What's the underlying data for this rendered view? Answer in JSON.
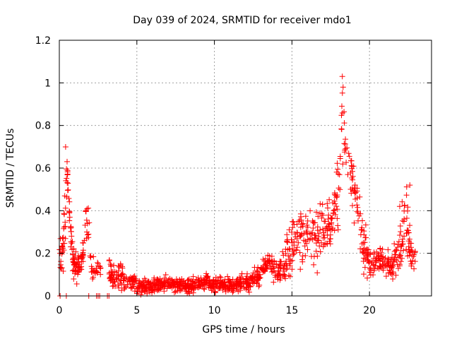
{
  "chart_data": {
    "type": "scatter",
    "title": "Day 039 of 2024, SRMTID for receiver mdo1",
    "xlabel": "GPS time / hours",
    "ylabel": "SRMTID / TECUs",
    "xlim": [
      0,
      24
    ],
    "ylim": [
      0,
      1.2
    ],
    "xticks": [
      0,
      5,
      10,
      15,
      20
    ],
    "xtick_labels": [
      "0",
      "5",
      "10",
      "15",
      "20"
    ],
    "yticks": [
      0,
      0.2,
      0.4,
      0.6,
      0.8,
      1.0,
      1.2
    ],
    "ytick_labels": [
      "0",
      "0.2",
      "0.4",
      "0.6",
      "0.8",
      "1",
      "1.2"
    ],
    "grid": true,
    "marker": "+",
    "series": [
      {
        "name": "SRMTID",
        "color": "#ff0000",
        "profile": [
          [
            0.0,
            0.15,
            0.08
          ],
          [
            0.2,
            0.2,
            0.08
          ],
          [
            0.4,
            0.4,
            0.2
          ],
          [
            0.5,
            0.58,
            0.06
          ],
          [
            0.7,
            0.34,
            0.06
          ],
          [
            0.9,
            0.15,
            0.06
          ],
          [
            1.2,
            0.12,
            0.05
          ],
          [
            1.5,
            0.18,
            0.05
          ],
          [
            1.7,
            0.38,
            0.08
          ],
          [
            1.9,
            0.28,
            0.1
          ],
          [
            2.1,
            0.14,
            0.05
          ],
          [
            2.3,
            0.13,
            0.04
          ],
          [
            3.2,
            0.12,
            0.05
          ],
          [
            3.5,
            0.09,
            0.04
          ],
          [
            4.0,
            0.08,
            0.05
          ],
          [
            4.5,
            0.07,
            0.05
          ],
          [
            5.0,
            0.04,
            0.03
          ],
          [
            6.0,
            0.05,
            0.03
          ],
          [
            7.0,
            0.06,
            0.03
          ],
          [
            8.0,
            0.04,
            0.03
          ],
          [
            9.0,
            0.06,
            0.03
          ],
          [
            9.5,
            0.07,
            0.03
          ],
          [
            10.0,
            0.05,
            0.03
          ],
          [
            11.0,
            0.05,
            0.03
          ],
          [
            12.0,
            0.06,
            0.04
          ],
          [
            12.5,
            0.08,
            0.04
          ],
          [
            13.0,
            0.1,
            0.04
          ],
          [
            13.5,
            0.17,
            0.04
          ],
          [
            14.0,
            0.1,
            0.05
          ],
          [
            14.5,
            0.14,
            0.06
          ],
          [
            15.0,
            0.25,
            0.12
          ],
          [
            15.5,
            0.27,
            0.12
          ],
          [
            16.0,
            0.3,
            0.12
          ],
          [
            16.5,
            0.28,
            0.12
          ],
          [
            17.0,
            0.3,
            0.12
          ],
          [
            17.5,
            0.32,
            0.12
          ],
          [
            18.0,
            0.55,
            0.2
          ],
          [
            18.2,
            0.85,
            0.15
          ],
          [
            18.5,
            0.7,
            0.15
          ],
          [
            18.8,
            0.55,
            0.12
          ],
          [
            19.0,
            0.5,
            0.12
          ],
          [
            19.3,
            0.38,
            0.12
          ],
          [
            19.6,
            0.25,
            0.1
          ],
          [
            20.0,
            0.15,
            0.06
          ],
          [
            20.5,
            0.16,
            0.06
          ],
          [
            21.0,
            0.15,
            0.06
          ],
          [
            21.5,
            0.12,
            0.05
          ],
          [
            22.0,
            0.25,
            0.12
          ],
          [
            22.4,
            0.35,
            0.15
          ],
          [
            22.6,
            0.22,
            0.08
          ],
          [
            22.9,
            0.18,
            0.05
          ]
        ],
        "outlier_points": [
          [
            0.05,
            0.0
          ],
          [
            0.45,
            0.0
          ],
          [
            1.9,
            0.0
          ],
          [
            2.4,
            0.0
          ],
          [
            2.5,
            0.0
          ],
          [
            2.6,
            0.0
          ],
          [
            3.1,
            0.0
          ],
          [
            3.2,
            0.0
          ],
          [
            18.25,
            1.03
          ],
          [
            18.3,
            0.98
          ],
          [
            0.5,
            0.63
          ],
          [
            22.6,
            0.52
          ],
          [
            21.95,
            0.42
          ]
        ],
        "x_range": [
          0.0,
          22.95
        ],
        "gap": [
          2.7,
          3.2
        ],
        "n_points": 1400
      }
    ]
  }
}
